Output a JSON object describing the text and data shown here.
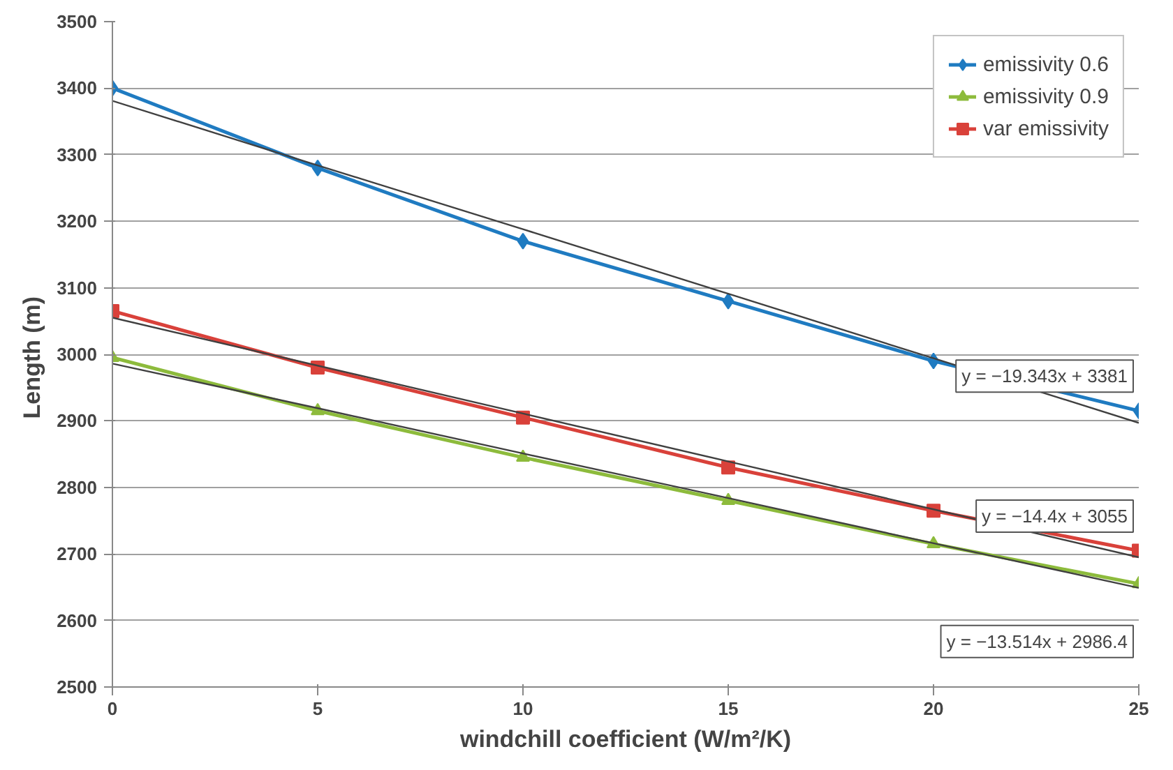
{
  "chart_data": {
    "type": "line",
    "xlabel": "windchill coefficient (W/m²/K)",
    "ylabel": "Length  (m)",
    "x": [
      0,
      5,
      10,
      15,
      20,
      25
    ],
    "series": [
      {
        "name": "emissivity 0.6",
        "color": "#1f7bc1",
        "marker": "diamond",
        "values": [
          3400,
          3280,
          3170,
          3080,
          2990,
          2915
        ]
      },
      {
        "name": "emissivity 0.9",
        "color": "#8dbb3c",
        "marker": "triangle",
        "values": [
          2995,
          2915,
          2845,
          2780,
          2715,
          2655
        ]
      },
      {
        "name": "var emissivity",
        "color": "#d9413a",
        "marker": "square",
        "values": [
          3065,
          2980,
          2905,
          2830,
          2765,
          2705
        ]
      },
      {
        "color": "#404040",
        "marker": "none",
        "values": [
          3381,
          3284,
          3188,
          3091,
          2994,
          2897
        ]
      },
      {
        "color": "#404040",
        "marker": "none",
        "values": [
          3055,
          2983,
          2911,
          2839,
          2767,
          2695
        ]
      },
      {
        "color": "#404040",
        "marker": "none",
        "values": [
          2986,
          2919,
          2851,
          2784,
          2716,
          2649
        ]
      }
    ],
    "annotations": [
      "y = −19.343x + 3381",
      "y = −14.4x + 3055",
      "y = −13.514x + 2986.4"
    ],
    "xlim": [
      0,
      25
    ],
    "xticks": [
      0,
      5,
      10,
      15,
      20,
      25
    ],
    "ylim": [
      2500,
      3500
    ],
    "yticks": [
      2500,
      2600,
      2700,
      2800,
      2900,
      3000,
      3100,
      3200,
      3300,
      3400,
      3500
    ],
    "grid": "y",
    "legend": "top right",
    "line_style": "solid"
  }
}
